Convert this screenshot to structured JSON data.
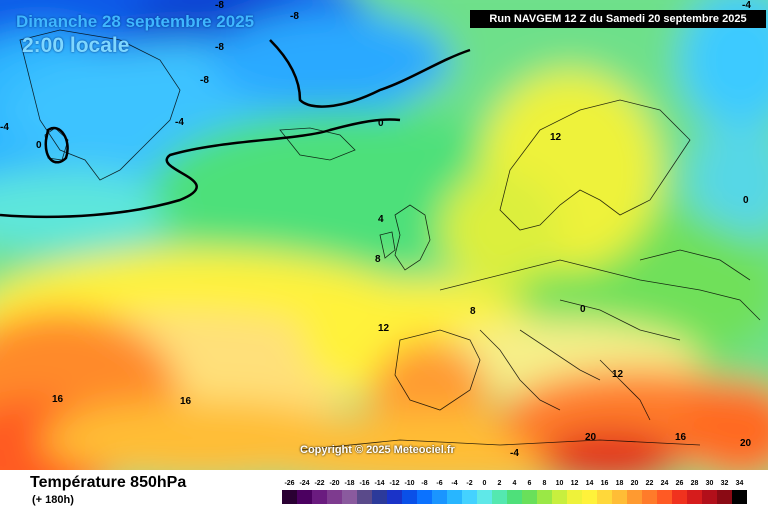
{
  "header": {
    "date_text": "Dimanche 28 septembre 2025",
    "time_text": "2:00 locale",
    "run_text": "Run NAVGEM 12 Z du Samedi 20 septembre 2025"
  },
  "footer": {
    "parameter": "Température 850hPa",
    "lead_time": "(+ 180h)",
    "copyright": "Copyright © 2025 Meteociel.fr"
  },
  "legend": {
    "values": [
      "-26",
      "-24",
      "-22",
      "-20",
      "-18",
      "-16",
      "-14",
      "-12",
      "-10",
      "-8",
      "-6",
      "-4",
      "-2",
      "0",
      "2",
      "4",
      "6",
      "8",
      "10",
      "12",
      "14",
      "16",
      "18",
      "20",
      "22",
      "24",
      "26",
      "28",
      "30",
      "32",
      "34"
    ],
    "colors": [
      "#2a0033",
      "#4b0060",
      "#6a1b7f",
      "#7e3b8f",
      "#8a5a9e",
      "#5a4a8a",
      "#2c3a9a",
      "#1a33c8",
      "#0a50e8",
      "#0b72ff",
      "#1a95ff",
      "#28b6ff",
      "#44d2ff",
      "#5fe8e8",
      "#54e8b0",
      "#4ee07a",
      "#69e05a",
      "#9ae846",
      "#c8ef3e",
      "#eef23a",
      "#fff23a",
      "#ffd83a",
      "#ffbd36",
      "#ff9a30",
      "#ff7b2a",
      "#ff5a24",
      "#f0321e",
      "#d61c1c",
      "#b20f1a",
      "#8a0a14",
      "#000000"
    ]
  },
  "map_labels": [
    "-8",
    "-8",
    "-8",
    "-8",
    "-4",
    "-4",
    "-4",
    "0",
    "0",
    "0",
    "4",
    "8",
    "8",
    "12",
    "12",
    "12",
    "16",
    "16",
    "16",
    "20",
    "20",
    "-4",
    "0"
  ]
}
